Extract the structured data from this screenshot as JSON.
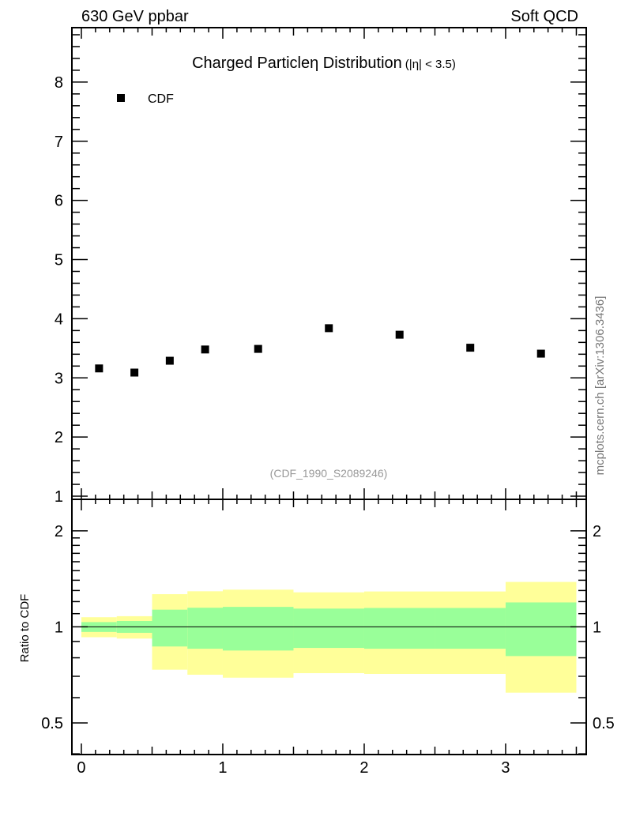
{
  "header": {
    "left": "630 GeV ppbar",
    "right": "Soft QCD"
  },
  "side_label": "mcplots.cern.ch [arXiv:1306.3436]",
  "chart_data": [
    {
      "type": "scatter",
      "title": "Charged Particleη Distribution",
      "title_suffix": "(|η| < 3.5)",
      "analysis_label": "(CDF_1990_S2089246)",
      "legend": [
        {
          "name": "CDF",
          "marker": "square",
          "color": "#000000"
        }
      ],
      "legend_position": "top-left",
      "xlim": [
        -0.067,
        3.57
      ],
      "ylim": [
        0.947,
        8.92
      ],
      "yticks": [
        1,
        2,
        3,
        4,
        5,
        6,
        7,
        8
      ],
      "ytick_labels": [
        "1",
        "2",
        "3",
        "4",
        "5",
        "6",
        "7",
        "8"
      ],
      "series": [
        {
          "name": "CDF",
          "x": [
            0.125,
            0.375,
            0.625,
            0.875,
            1.25,
            1.75,
            2.25,
            2.75,
            3.25
          ],
          "y": [
            3.16,
            3.09,
            3.29,
            3.48,
            3.49,
            3.84,
            3.73,
            3.51,
            3.41
          ]
        }
      ]
    },
    {
      "type": "area",
      "ylabel": "Ratio to CDF",
      "yscale": "log",
      "xlim": [
        -0.067,
        3.57
      ],
      "ylim": [
        0.398,
        2.51
      ],
      "yticks": [
        0.5,
        1,
        2
      ],
      "ytick_labels": [
        "0.5",
        "1",
        "2"
      ],
      "xticks": [
        0,
        1,
        2,
        3
      ],
      "xtick_labels": [
        "0",
        "1",
        "2",
        "3"
      ],
      "bins": [
        [
          0,
          0.25
        ],
        [
          0.25,
          0.5
        ],
        [
          0.5,
          0.75
        ],
        [
          0.75,
          1
        ],
        [
          1,
          1.5
        ],
        [
          1.5,
          2
        ],
        [
          2,
          2.5
        ],
        [
          2.5,
          3
        ],
        [
          3,
          3.5
        ]
      ],
      "outer_band": {
        "color": "#ffff99",
        "low": [
          0.928,
          0.919,
          0.734,
          0.708,
          0.693,
          0.716,
          0.712,
          0.712,
          0.622
        ],
        "high": [
          1.072,
          1.08,
          1.266,
          1.293,
          1.308,
          1.283,
          1.291,
          1.291,
          1.383
        ]
      },
      "inner_band": {
        "color": "#99ff99",
        "low": [
          0.964,
          0.958,
          0.868,
          0.854,
          0.843,
          0.859,
          0.854,
          0.854,
          0.81
        ],
        "high": [
          1.035,
          1.043,
          1.132,
          1.148,
          1.155,
          1.141,
          1.146,
          1.146,
          1.193
        ]
      },
      "reference_line": 1
    }
  ]
}
